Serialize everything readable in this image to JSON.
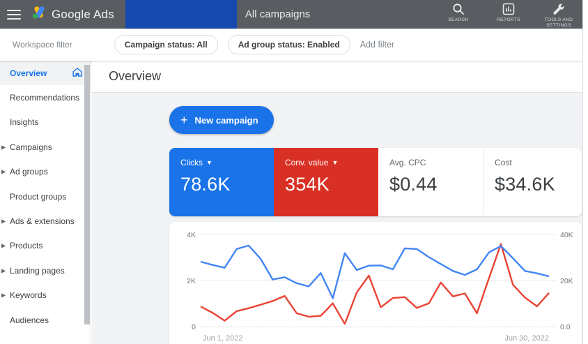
{
  "topbar": {
    "brand": "Google Ads",
    "page_title": "All campaigns",
    "actions": [
      {
        "label": "SEARCH"
      },
      {
        "label": "REPORTS"
      },
      {
        "label": "TOOLS AND SETTINGS"
      }
    ]
  },
  "filterbar": {
    "workspace_label": "Workspace filter",
    "chips": [
      {
        "label": "Campaign status: All"
      },
      {
        "label": "Ad group status: Enabled"
      }
    ],
    "add_filter_label": "Add filter"
  },
  "sidebar": {
    "items": [
      {
        "label": "Overview",
        "selected": true,
        "arrow": false
      },
      {
        "label": "Recommendations",
        "arrow": false
      },
      {
        "label": "Insights",
        "arrow": false
      },
      {
        "label": "Campaigns",
        "arrow": true
      },
      {
        "label": "Ad groups",
        "arrow": true
      },
      {
        "label": "Product groups",
        "arrow": false
      },
      {
        "label": "Ads & extensions",
        "arrow": true
      },
      {
        "label": "Products",
        "arrow": true
      },
      {
        "label": "Landing pages",
        "arrow": true
      },
      {
        "label": "Keywords",
        "arrow": true
      },
      {
        "label": "Audiences",
        "arrow": false
      }
    ]
  },
  "main": {
    "title": "Overview",
    "new_campaign_label": "New campaign"
  },
  "cards": [
    {
      "label": "Clicks",
      "value": "78.6K",
      "bg": "#1a73e8",
      "dropdown": true
    },
    {
      "label": "Conv. value",
      "value": "354K",
      "bg": "#d93025",
      "dropdown": true
    },
    {
      "label": "Avg. CPC",
      "value": "$0.44"
    },
    {
      "label": "Cost",
      "value": "$34.6K"
    }
  ],
  "colors": {
    "accent_blue": "#1a73e8",
    "metric_red": "#d93025",
    "line_blue": "#4285f4",
    "line_red": "#ea4335"
  },
  "chart_data": {
    "type": "line",
    "x": [
      1,
      2,
      3,
      4,
      5,
      6,
      7,
      8,
      9,
      10,
      11,
      12,
      13,
      14,
      15,
      16,
      17,
      18,
      19,
      20,
      21,
      22,
      23,
      24,
      25,
      26,
      27,
      28,
      29,
      30
    ],
    "x_axis_labels": {
      "start": "Jun 1, 2022",
      "end": "Jun 30, 2022"
    },
    "left_axis": {
      "ticks": [
        "4K",
        "2K",
        "0"
      ],
      "range": [
        0,
        4000
      ]
    },
    "right_axis": {
      "ticks": [
        "40K",
        "20K",
        "0.0"
      ],
      "range": [
        0,
        40000
      ]
    },
    "grid": true,
    "legend": "none",
    "series": [
      {
        "name": "Clicks",
        "axis": "left",
        "color": "#4285f4",
        "values": [
          2820,
          2680,
          2560,
          3370,
          3520,
          2940,
          2050,
          2150,
          1890,
          1750,
          2330,
          1240,
          3190,
          2460,
          2650,
          2660,
          2490,
          3400,
          3370,
          3020,
          2720,
          2420,
          2250,
          2490,
          3220,
          3500,
          2970,
          2420,
          2320,
          2190
        ]
      },
      {
        "name": "Conv. value",
        "axis": "right",
        "color": "#ea4335",
        "values": [
          8800,
          6100,
          2700,
          6800,
          8100,
          9600,
          11200,
          13400,
          5900,
          4400,
          4800,
          10200,
          1300,
          14900,
          22200,
          8500,
          12500,
          12900,
          8200,
          10200,
          19200,
          13200,
          14500,
          5900,
          21000,
          35900,
          18200,
          12700,
          8900,
          14700
        ]
      }
    ]
  }
}
